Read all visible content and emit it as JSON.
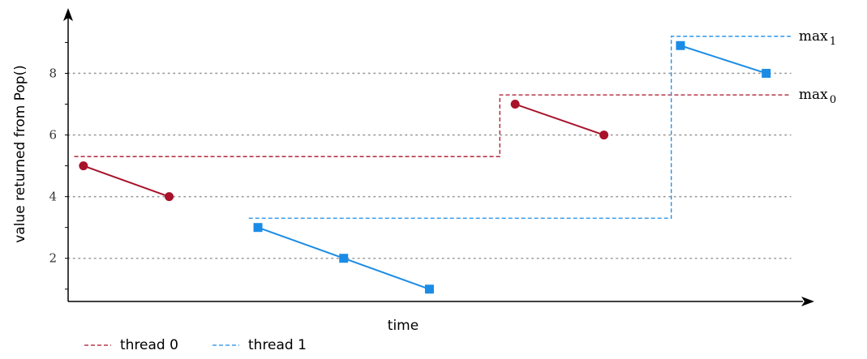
{
  "chart_data": {
    "type": "line",
    "title": "",
    "xlabel": "time",
    "ylabel": "value returned from Pop()",
    "ylim": [
      0.6,
      9.8
    ],
    "xlim": [
      0,
      12
    ],
    "yticks": [
      "2",
      "4",
      "6",
      "8"
    ],
    "grid": true,
    "colors": {
      "thread0": "#a8122a",
      "thread1": "#1a8ce6",
      "grid": "#9a9a9a"
    },
    "series": [
      {
        "name": "thread 0",
        "num": "0",
        "marker": "circle",
        "color": "#a8122a",
        "segments": [
          [
            [
              0.25,
              5.0
            ],
            [
              1.65,
              4.0
            ]
          ],
          [
            [
              7.3,
              7.0
            ],
            [
              8.75,
              6.0
            ]
          ]
        ],
        "running_max": [
          [
            0.1,
            5.3
          ],
          [
            7.05,
            5.3
          ],
          [
            7.05,
            7.3
          ],
          [
            11.8,
            7.3
          ]
        ],
        "annotation_main": "max",
        "annotation_sub": "0"
      },
      {
        "name": "thread 1",
        "num": "1",
        "marker": "square",
        "color": "#1a8ce6",
        "segments": [
          [
            [
              3.1,
              3.0
            ],
            [
              4.5,
              2.0
            ],
            [
              5.9,
              1.0
            ]
          ],
          [
            [
              10.0,
              8.9
            ],
            [
              11.4,
              8.0
            ]
          ]
        ],
        "running_max": [
          [
            2.95,
            3.3
          ],
          [
            9.85,
            3.3
          ],
          [
            9.85,
            9.2
          ],
          [
            11.8,
            9.2
          ]
        ],
        "annotation_main": "max",
        "annotation_sub": "1"
      }
    ]
  }
}
